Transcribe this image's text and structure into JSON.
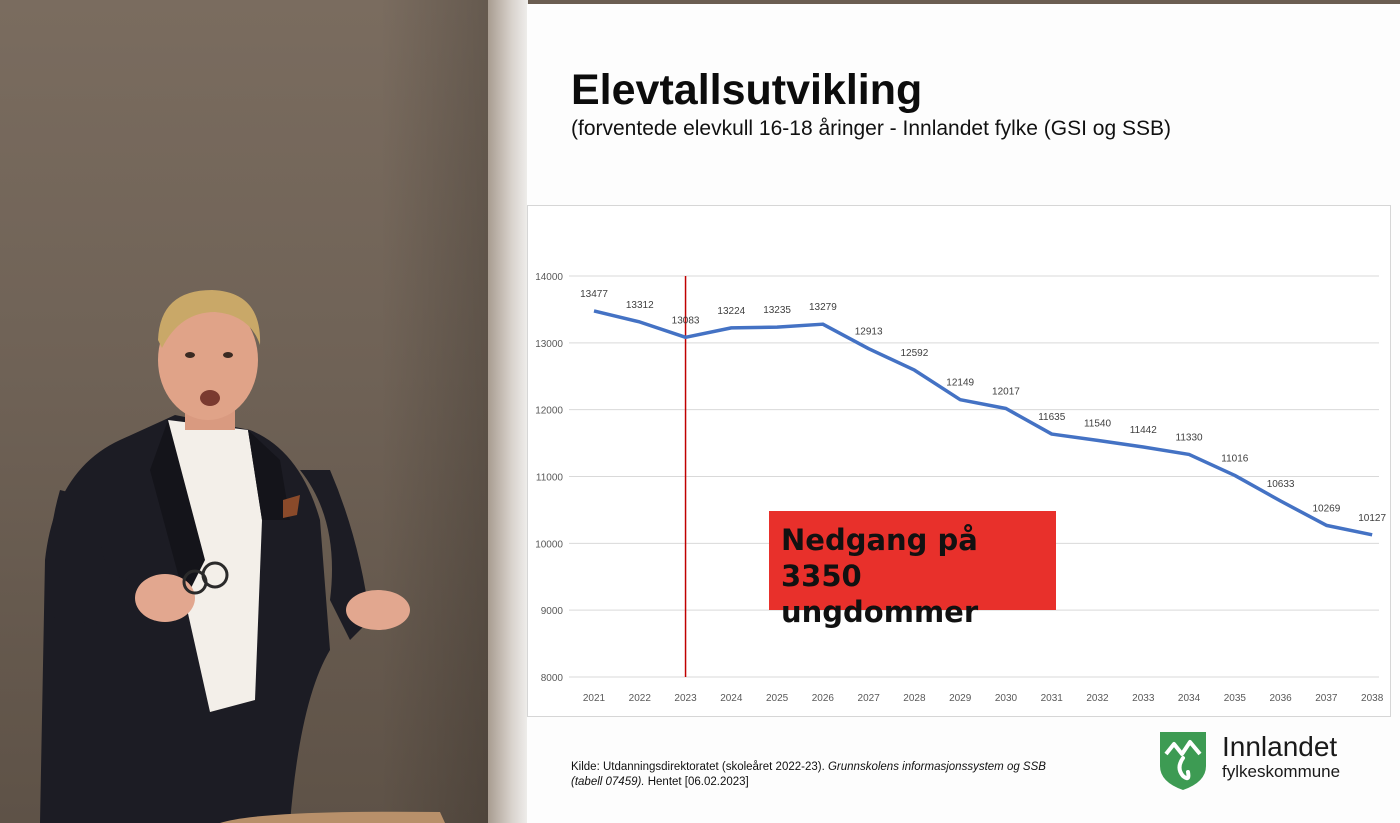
{
  "slide": {
    "title": "Elevtallsutvikling",
    "subtitle": "(forventede elevkull 16-18 åringer - Innlandet fylke (GSI og SSB)",
    "callout": "Nedgang på 3350\nungdommer",
    "source_plain": "Kilde: Utdanningsdirektoratet (skoleåret 2022-23). ",
    "source_italic": "Grunnskolens informasjonssystem og SSB (tabell 07459).",
    "source_tail": " Hentet [06.02.2023]",
    "logo_name": "Innlandet",
    "logo_sub": "fylkeskommune"
  },
  "colors": {
    "line": "#4472c4",
    "marker_line": "#c00000",
    "callout_bg": "#e8302b",
    "logo_green": "#3d9b53"
  },
  "icons": [
    "presenter-photo",
    "innlandet-shield-logo"
  ],
  "chart_data": {
    "type": "line",
    "categories": [
      "2021",
      "2022",
      "2023",
      "2024",
      "2025",
      "2026",
      "2027",
      "2028",
      "2029",
      "2030",
      "2031",
      "2032",
      "2033",
      "2034",
      "2035",
      "2036",
      "2037",
      "2038"
    ],
    "series": [
      {
        "values": [
          13477,
          13312,
          13083,
          13224,
          13235,
          13279,
          12913,
          12592,
          12149,
          12017,
          11635,
          11540,
          11442,
          11330,
          11016,
          10633,
          10269,
          10127
        ]
      }
    ],
    "data_labels": [
      "13477",
      "13312",
      "13083",
      "13224",
      "13235",
      "13279",
      "12913",
      "12592",
      "12149",
      "12017",
      "11635",
      "11540",
      "11442",
      "11330",
      "11016",
      "10633",
      "10269",
      "10127"
    ],
    "y_ticks": [
      "8000",
      "9000",
      "10000",
      "11000",
      "12000",
      "13000",
      "14000"
    ],
    "ylim": [
      8000,
      14000
    ],
    "vertical_marker": "2023",
    "grid": true
  }
}
